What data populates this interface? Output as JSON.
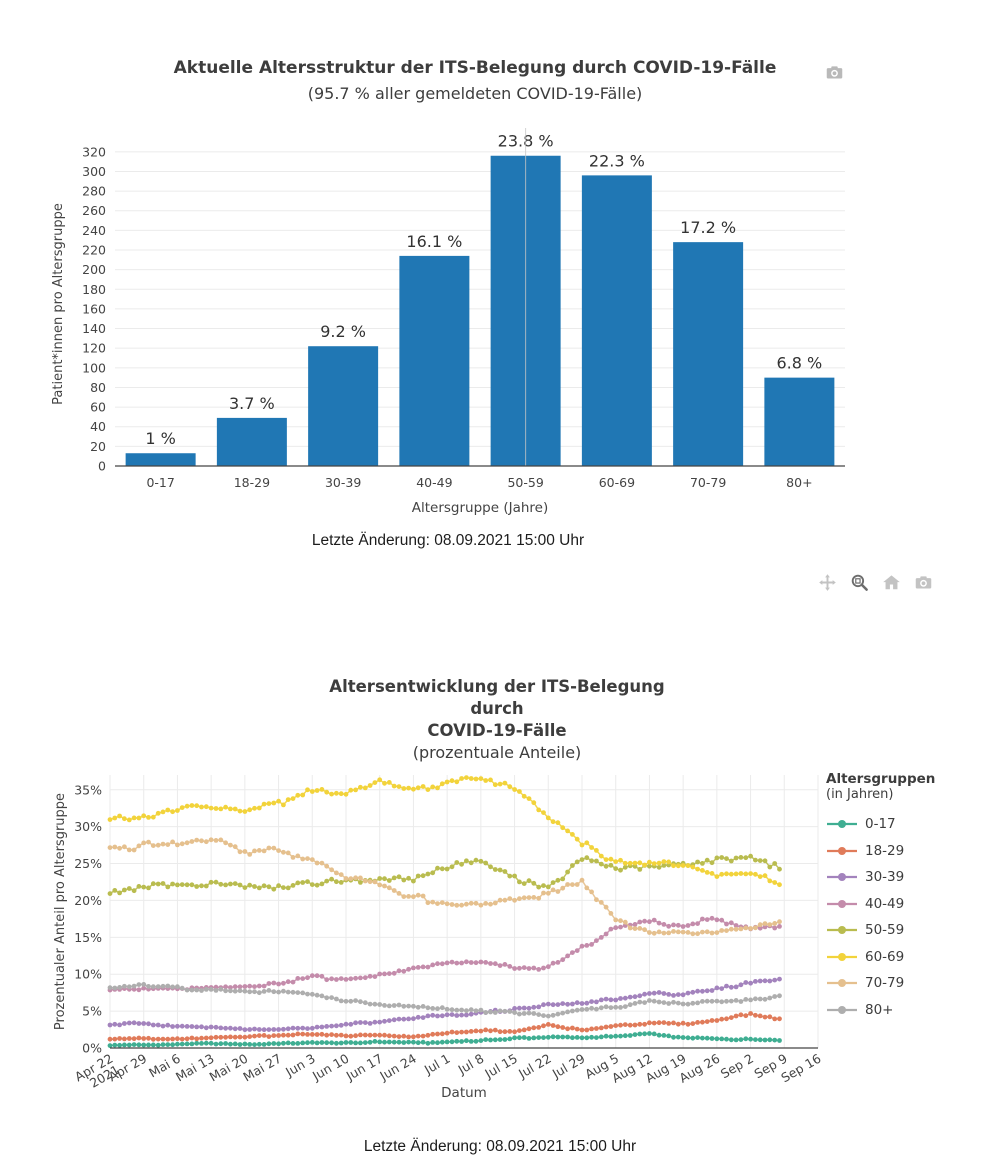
{
  "page": {
    "background": "#ffffff",
    "text_color": "#444444"
  },
  "toolbar_top": {
    "icons": [
      "camera-icon"
    ],
    "icon_color": "#b9b9b9"
  },
  "toolbar_mid": {
    "icons": [
      "pan-icon",
      "zoom-icon",
      "home-icon",
      "camera-icon"
    ],
    "active_icon": "zoom-icon",
    "icon_color": "#c3c3c3",
    "active_color": "#6d6d6d"
  },
  "chart_data": [
    {
      "type": "bar",
      "title": "Aktuelle Altersstruktur der ITS-Belegung durch COVID-19-Fälle",
      "subtitle": "(95.7 % aller gemeldeten COVID-19-Fälle)",
      "categories": [
        "0-17",
        "18-29",
        "30-39",
        "40-49",
        "50-59",
        "60-69",
        "70-79",
        "80+"
      ],
      "values": [
        13,
        49,
        122,
        214,
        316,
        296,
        228,
        90
      ],
      "bar_labels": [
        "1 %",
        "3.7 %",
        "9.2 %",
        "16.1 %",
        "23.8 %",
        "22.3 %",
        "17.2 %",
        "6.8 %"
      ],
      "xlabel": "Altersgruppe (Jahre)",
      "ylabel": "Patient*innen pro Altersgruppe",
      "ylim": [
        0,
        330
      ],
      "ytick_step": 20,
      "ytick_max": 320,
      "bar_color": "#2077b4",
      "grid": "horizontal",
      "spike_line_category": "50-59",
      "footer": "Letzte Änderung: 08.09.2021 15:00 Uhr"
    },
    {
      "type": "line",
      "title_lines": [
        "Altersentwicklung der ITS-Belegung",
        "durch",
        "COVID-19-Fälle"
      ],
      "subtitle": "(prozentuale Anteile)",
      "xlabel": "Datum",
      "ylabel": "Prozentualer Anteil pro Altersgruppe",
      "ylim_percent": [
        0,
        37
      ],
      "ytick_labels": [
        "0%",
        "5%",
        "10%",
        "15%",
        "20%",
        "25%",
        "30%",
        "35%"
      ],
      "xtick_labels": [
        "Apr 22\n2021",
        "Apr 29",
        "Mai 6",
        "Mai 13",
        "Mai 20",
        "Mai 27",
        "Jun 3",
        "Jun 10",
        "Jun 17",
        "Jun 24",
        "Jul 1",
        "Jul 8",
        "Jul 15",
        "Jul 22",
        "Jul 29",
        "Aug 5",
        "Aug 12",
        "Aug 19",
        "Aug 26",
        "Sep 2",
        "Sep 9",
        "Sep 16"
      ],
      "x_axis_span_days": 147,
      "legend_title": "Altersgruppen",
      "legend_subtitle": "(in Jahren)",
      "anchor_dates": [
        "Apr 22",
        "Apr 29",
        "Mai 6",
        "Mai 13",
        "Mai 20",
        "Mai 27",
        "Jun 3",
        "Jun 10",
        "Jun 17",
        "Jun 24",
        "Jul 1",
        "Jul 8",
        "Jul 15",
        "Jul 22",
        "Jul 29",
        "Aug 5",
        "Aug 12",
        "Aug 19",
        "Aug 26",
        "Sep 2",
        "Sep 8"
      ],
      "anchor_days": [
        0,
        7,
        14,
        21,
        28,
        35,
        42,
        49,
        56,
        63,
        70,
        77,
        84,
        91,
        98,
        105,
        112,
        119,
        126,
        133,
        139
      ],
      "series": [
        {
          "name": "0-17",
          "color": "#3fae92",
          "values_percent": [
            0.4,
            0.4,
            0.5,
            0.6,
            0.5,
            0.6,
            0.7,
            0.7,
            0.8,
            0.7,
            0.8,
            1.0,
            1.3,
            1.5,
            1.4,
            1.6,
            1.9,
            1.4,
            1.2,
            1.2,
            1.0
          ]
        },
        {
          "name": "18-29",
          "color": "#e07b5a",
          "values_percent": [
            1.2,
            1.3,
            1.2,
            1.4,
            1.5,
            1.7,
            1.9,
            1.7,
            1.8,
            1.5,
            2.0,
            2.4,
            2.2,
            3.2,
            2.4,
            3.0,
            3.4,
            3.3,
            3.8,
            4.6,
            4.0
          ]
        },
        {
          "name": "30-39",
          "color": "#a383bd",
          "values_percent": [
            3.2,
            3.3,
            2.9,
            2.8,
            2.6,
            2.5,
            2.8,
            3.2,
            3.6,
            4.1,
            4.4,
            4.7,
            5.3,
            5.8,
            6.1,
            6.6,
            7.4,
            7.3,
            8.0,
            8.8,
            9.4
          ]
        },
        {
          "name": "40-49",
          "color": "#c48cab",
          "values_percent": [
            7.8,
            8.1,
            7.9,
            8.3,
            8.4,
            8.7,
            9.6,
            9.2,
            9.9,
            10.8,
            11.4,
            11.6,
            11.0,
            10.8,
            13.5,
            16.3,
            17.2,
            16.5,
            17.6,
            16.0,
            16.4
          ]
        },
        {
          "name": "50-59",
          "color": "#b9bc4f",
          "values_percent": [
            21.2,
            21.9,
            22.0,
            22.3,
            22.1,
            22.0,
            22.4,
            23.0,
            22.6,
            22.9,
            24.8,
            25.2,
            23.3,
            21.5,
            25.4,
            24.6,
            24.3,
            25.1,
            25.6,
            26.1,
            24.2
          ]
        },
        {
          "name": "60-69",
          "color": "#f2d33b",
          "values_percent": [
            31.1,
            31.4,
            32.4,
            32.6,
            32.3,
            33.2,
            34.8,
            34.6,
            36.2,
            35.0,
            35.6,
            36.6,
            35.2,
            31.6,
            27.8,
            25.2,
            25.0,
            24.8,
            23.2,
            23.6,
            22.3
          ]
        },
        {
          "name": "70-79",
          "color": "#e5c08e",
          "values_percent": [
            27.1,
            27.3,
            27.9,
            28.2,
            26.6,
            26.9,
            25.4,
            23.2,
            22.0,
            20.4,
            19.5,
            19.3,
            20.3,
            20.8,
            22.6,
            17.2,
            15.8,
            15.5,
            15.9,
            16.2,
            17.1
          ]
        },
        {
          "name": "80+",
          "color": "#aeaeae",
          "values_percent": [
            8.2,
            8.5,
            8.1,
            7.9,
            7.7,
            7.6,
            7.3,
            6.4,
            5.9,
            5.6,
            5.4,
            5.0,
            4.8,
            4.4,
            5.2,
            5.5,
            6.4,
            5.9,
            6.3,
            6.5,
            7.0
          ]
        }
      ],
      "footer": "Letzte Änderung: 08.09.2021 15:00 Uhr"
    }
  ]
}
